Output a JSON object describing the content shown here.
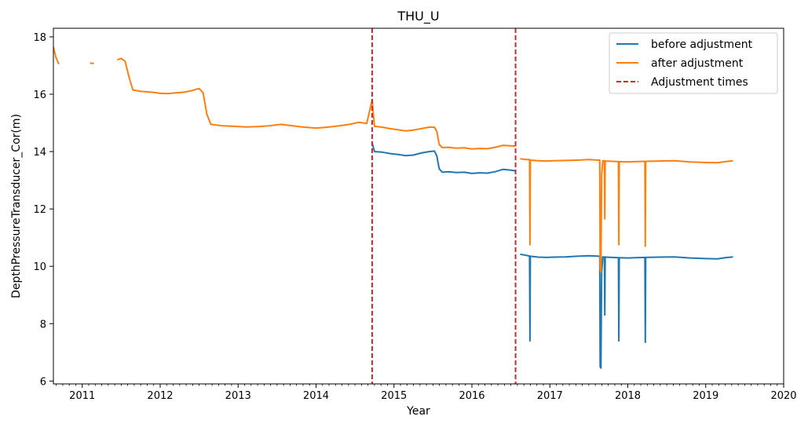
{
  "chart_data": {
    "type": "line",
    "title": "THU_U",
    "xlabel": "Year",
    "ylabel": "DepthPressureTransducer_Cor(m)",
    "xlim": [
      2010.63,
      2020.0
    ],
    "ylim": [
      5.9,
      18.3
    ],
    "x_ticks": [
      2011,
      2012,
      2013,
      2014,
      2015,
      2016,
      2017,
      2018,
      2019,
      2020
    ],
    "x_tick_labels": [
      "2011",
      "2012",
      "2013",
      "2014",
      "2015",
      "2016",
      "2017",
      "2018",
      "2019",
      "2020"
    ],
    "y_ticks": [
      6,
      8,
      10,
      12,
      14,
      16,
      18
    ],
    "y_tick_labels": [
      "6",
      "8",
      "10",
      "12",
      "14",
      "16",
      "18"
    ],
    "grid": false,
    "legend": {
      "position": "top-right",
      "entries": [
        "before adjustment",
        "after adjustment",
        "Adjustment times"
      ]
    },
    "colors": {
      "before": "#1f77b4",
      "after": "#ff7f0e",
      "adjustment": "#d62728"
    },
    "adjustment_times": [
      2014.72,
      2016.56
    ],
    "series": [
      {
        "name": "before adjustment",
        "segments": [
          [
            [
              2014.72,
              14.3
            ],
            [
              2014.75,
              14.0
            ],
            [
              2014.85,
              13.98
            ],
            [
              2014.95,
              13.93
            ],
            [
              2015.05,
              13.9
            ],
            [
              2015.15,
              13.86
            ],
            [
              2015.25,
              13.88
            ],
            [
              2015.35,
              13.95
            ],
            [
              2015.45,
              14.0
            ],
            [
              2015.52,
              14.02
            ],
            [
              2015.55,
              13.85
            ],
            [
              2015.58,
              13.4
            ],
            [
              2015.62,
              13.28
            ],
            [
              2015.7,
              13.3
            ],
            [
              2015.8,
              13.27
            ],
            [
              2015.9,
              13.28
            ],
            [
              2016.0,
              13.24
            ],
            [
              2016.1,
              13.26
            ],
            [
              2016.2,
              13.25
            ],
            [
              2016.3,
              13.3
            ],
            [
              2016.4,
              13.38
            ],
            [
              2016.5,
              13.35
            ],
            [
              2016.56,
              13.33
            ]
          ],
          [
            [
              2016.62,
              10.42
            ],
            [
              2016.7,
              10.38
            ],
            [
              2016.74,
              10.36
            ],
            [
              2016.745,
              7.4
            ],
            [
              2016.75,
              10.35
            ],
            [
              2016.85,
              10.32
            ],
            [
              2016.95,
              10.31
            ],
            [
              2017.05,
              10.32
            ],
            [
              2017.2,
              10.33
            ],
            [
              2017.35,
              10.35
            ],
            [
              2017.5,
              10.37
            ],
            [
              2017.64,
              10.35
            ],
            [
              2017.645,
              6.5
            ],
            [
              2017.655,
              6.45
            ],
            [
              2017.665,
              9.8
            ],
            [
              2017.68,
              10.33
            ],
            [
              2017.7,
              10.33
            ],
            [
              2017.705,
              8.3
            ],
            [
              2017.71,
              10.32
            ],
            [
              2017.8,
              10.31
            ],
            [
              2017.88,
              10.3
            ],
            [
              2017.885,
              7.4
            ],
            [
              2017.89,
              10.3
            ],
            [
              2018.0,
              10.29
            ],
            [
              2018.1,
              10.3
            ],
            [
              2018.22,
              10.31
            ],
            [
              2018.225,
              7.35
            ],
            [
              2018.23,
              10.31
            ],
            [
              2018.4,
              10.32
            ],
            [
              2018.6,
              10.33
            ],
            [
              2018.8,
              10.29
            ],
            [
              2019.0,
              10.27
            ],
            [
              2019.15,
              10.26
            ],
            [
              2019.25,
              10.3
            ],
            [
              2019.35,
              10.33
            ]
          ]
        ]
      },
      {
        "name": "after adjustment",
        "segments": [
          [
            [
              2010.63,
              17.65
            ],
            [
              2010.66,
              17.3
            ],
            [
              2010.7,
              17.05
            ]
          ],
          [
            [
              2011.1,
              17.09
            ],
            [
              2011.15,
              17.07
            ]
          ],
          [
            [
              2011.45,
              17.2
            ],
            [
              2011.5,
              17.25
            ],
            [
              2011.55,
              17.15
            ],
            [
              2011.6,
              16.6
            ],
            [
              2011.65,
              16.15
            ],
            [
              2011.75,
              16.1
            ],
            [
              2011.9,
              16.07
            ],
            [
              2012.0,
              16.03
            ],
            [
              2012.1,
              16.02
            ],
            [
              2012.2,
              16.05
            ],
            [
              2012.3,
              16.07
            ],
            [
              2012.4,
              16.12
            ],
            [
              2012.5,
              16.2
            ],
            [
              2012.55,
              16.05
            ],
            [
              2012.6,
              15.3
            ],
            [
              2012.65,
              14.95
            ],
            [
              2012.8,
              14.9
            ],
            [
              2012.95,
              14.88
            ],
            [
              2013.1,
              14.86
            ],
            [
              2013.25,
              14.87
            ],
            [
              2013.4,
              14.9
            ],
            [
              2013.55,
              14.95
            ],
            [
              2013.7,
              14.9
            ],
            [
              2013.85,
              14.85
            ],
            [
              2014.0,
              14.82
            ],
            [
              2014.15,
              14.85
            ],
            [
              2014.3,
              14.9
            ],
            [
              2014.45,
              14.96
            ],
            [
              2014.55,
              15.02
            ],
            [
              2014.65,
              14.98
            ],
            [
              2014.72,
              15.8
            ],
            [
              2014.75,
              14.88
            ],
            [
              2014.85,
              14.85
            ],
            [
              2014.95,
              14.8
            ],
            [
              2015.05,
              14.76
            ],
            [
              2015.15,
              14.72
            ],
            [
              2015.25,
              14.75
            ],
            [
              2015.35,
              14.8
            ],
            [
              2015.45,
              14.85
            ],
            [
              2015.52,
              14.85
            ],
            [
              2015.55,
              14.7
            ],
            [
              2015.58,
              14.25
            ],
            [
              2015.62,
              14.14
            ],
            [
              2015.7,
              14.15
            ],
            [
              2015.8,
              14.12
            ],
            [
              2015.9,
              14.13
            ],
            [
              2016.0,
              14.09
            ],
            [
              2016.1,
              14.11
            ],
            [
              2016.2,
              14.1
            ],
            [
              2016.3,
              14.15
            ],
            [
              2016.4,
              14.22
            ],
            [
              2016.5,
              14.2
            ],
            [
              2016.56,
              14.19
            ]
          ],
          [
            [
              2016.62,
              13.75
            ],
            [
              2016.7,
              13.72
            ],
            [
              2016.74,
              13.72
            ],
            [
              2016.745,
              10.75
            ],
            [
              2016.75,
              13.7
            ],
            [
              2016.85,
              13.68
            ],
            [
              2016.95,
              13.67
            ],
            [
              2017.05,
              13.68
            ],
            [
              2017.2,
              13.69
            ],
            [
              2017.35,
              13.7
            ],
            [
              2017.5,
              13.72
            ],
            [
              2017.64,
              13.7
            ],
            [
              2017.645,
              9.9
            ],
            [
              2017.655,
              9.8
            ],
            [
              2017.665,
              13.2
            ],
            [
              2017.68,
              13.68
            ],
            [
              2017.7,
              13.68
            ],
            [
              2017.705,
              11.65
            ],
            [
              2017.71,
              13.67
            ],
            [
              2017.8,
              13.66
            ],
            [
              2017.88,
              13.65
            ],
            [
              2017.885,
              10.75
            ],
            [
              2017.89,
              13.65
            ],
            [
              2018.0,
              13.64
            ],
            [
              2018.1,
              13.65
            ],
            [
              2018.22,
              13.66
            ],
            [
              2018.225,
              10.7
            ],
            [
              2018.23,
              13.66
            ],
            [
              2018.4,
              13.67
            ],
            [
              2018.6,
              13.68
            ],
            [
              2018.8,
              13.64
            ],
            [
              2019.0,
              13.62
            ],
            [
              2019.15,
              13.61
            ],
            [
              2019.25,
              13.65
            ],
            [
              2019.35,
              13.68
            ]
          ]
        ]
      }
    ]
  }
}
